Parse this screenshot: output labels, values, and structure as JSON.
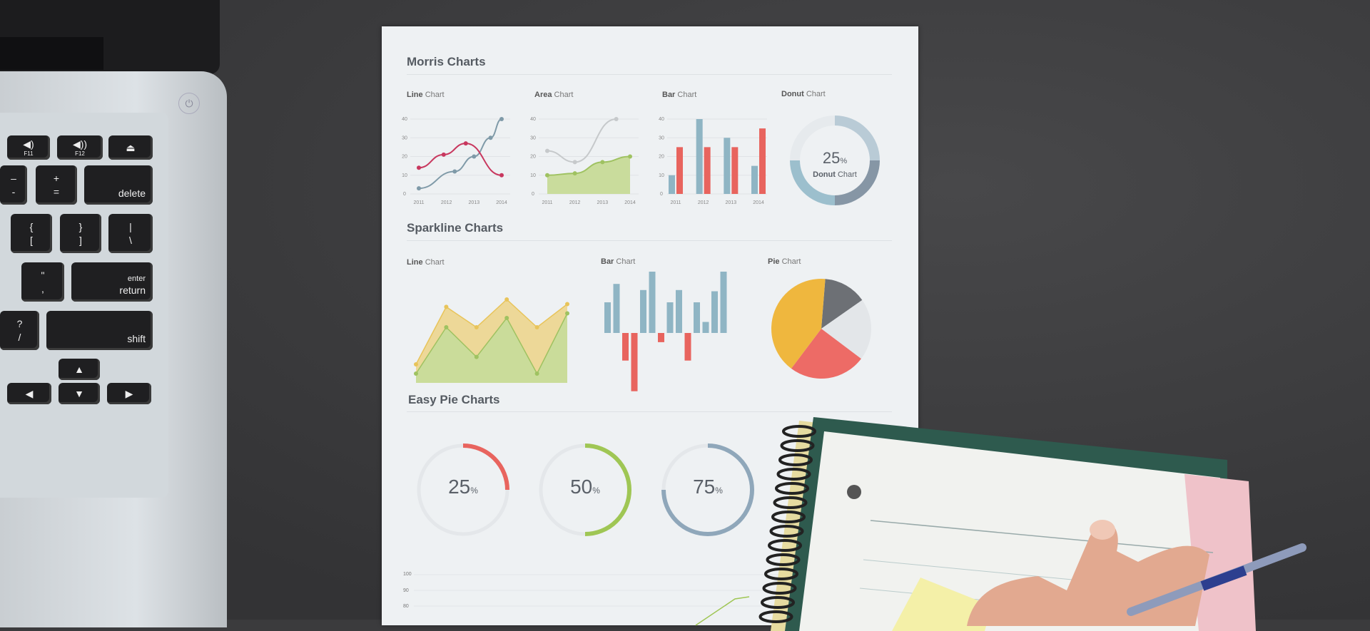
{
  "laptop": {
    "keys": [
      {
        "top": "◀)",
        "bottom": "F11"
      },
      {
        "top": "◀))",
        "bottom": "F12"
      },
      {
        "top": "⏏",
        "bottom": ""
      },
      {
        "top": "–",
        "bottom": "-"
      },
      {
        "top": "+",
        "bottom": "="
      },
      {
        "top": "",
        "bottom": "delete"
      },
      {
        "top": "{",
        "bottom": "["
      },
      {
        "top": "}",
        "bottom": "]"
      },
      {
        "top": "|",
        "bottom": "\\"
      },
      {
        "top": "\"",
        "bottom": ","
      },
      {
        "top": "enter",
        "bottom": "return"
      },
      {
        "top": "?",
        "bottom": "/"
      },
      {
        "top": "",
        "bottom": "shift"
      },
      {
        "top": "▲",
        "bottom": ""
      },
      {
        "top": "◀",
        "bottom": ""
      },
      {
        "top": "▼",
        "bottom": ""
      },
      {
        "top": "▶",
        "bottom": ""
      }
    ],
    "power_icon": "⏻"
  },
  "paper": {
    "morris": {
      "title": "Morris Charts",
      "line": {
        "bold": "Line",
        "label": "Chart"
      },
      "area": {
        "bold": "Area",
        "label": "Chart"
      },
      "bar": {
        "bold": "Bar",
        "label": "Chart"
      },
      "donut": {
        "bold": "Donut",
        "label": "Chart",
        "value": "25",
        "unit": "%"
      }
    },
    "sparkline": {
      "title": "Sparkline Charts",
      "line": {
        "bold": "Line",
        "label": "Chart"
      },
      "bar": {
        "bold": "Bar",
        "label": "Chart"
      },
      "pie": {
        "bold": "Pie",
        "label": "Chart"
      }
    },
    "easypie": {
      "title": "Easy Pie Charts",
      "items": [
        {
          "value": "25",
          "unit": "%"
        },
        {
          "value": "50",
          "unit": "%"
        },
        {
          "value": "75",
          "unit": "%"
        }
      ]
    },
    "bottom_ticks": [
      "100",
      "90",
      "80"
    ]
  },
  "chart_data": [
    {
      "type": "line",
      "title": "Line Chart",
      "x_ticks": [
        "2011",
        "2012",
        "2013",
        "2014"
      ],
      "y_ticks": [
        "0",
        "10",
        "20",
        "30",
        "40"
      ],
      "ylim": [
        0,
        40
      ],
      "series": [
        {
          "color": "#7f9aa8",
          "points": [
            [
              2011,
              3
            ],
            [
              2012.3,
              12
            ],
            [
              2013,
              20
            ],
            [
              2013.6,
              30
            ],
            [
              2014,
              40
            ]
          ]
        },
        {
          "color": "#c8375e",
          "points": [
            [
              2011,
              14
            ],
            [
              2011.9,
              21
            ],
            [
              2012.7,
              27
            ],
            [
              2014,
              10
            ]
          ]
        }
      ]
    },
    {
      "type": "area",
      "title": "Area Chart",
      "x_ticks": [
        "2011",
        "2012",
        "2013",
        "2014"
      ],
      "y_ticks": [
        "0",
        "10",
        "20",
        "30",
        "40"
      ],
      "ylim": [
        0,
        40
      ],
      "series": [
        {
          "color": "#c6c9cb",
          "points": [
            [
              2011,
              23
            ],
            [
              2012,
              17
            ],
            [
              2013.5,
              40
            ]
          ]
        },
        {
          "color": "#9fc261",
          "points": [
            [
              2011,
              10
            ],
            [
              2012,
              11
            ],
            [
              2013,
              17
            ],
            [
              2014,
              20
            ]
          ]
        }
      ]
    },
    {
      "type": "bar",
      "title": "Bar Chart",
      "categories": [
        "2011",
        "2012",
        "2013",
        "2014"
      ],
      "y_ticks": [
        "0",
        "10",
        "20",
        "30",
        "40"
      ],
      "ylim": [
        0,
        40
      ],
      "series": [
        {
          "color": "#8fb5c4",
          "values": [
            10,
            40,
            30,
            15
          ]
        },
        {
          "color": "#e8645e",
          "values": [
            25,
            25,
            25,
            35
          ]
        }
      ]
    },
    {
      "type": "pie",
      "title": "Donut Chart",
      "values": [
        25,
        25,
        25,
        25
      ],
      "colors": [
        "#b9cbd6",
        "#8696a5",
        "#9cbfcd",
        "#e6eaed"
      ]
    },
    {
      "type": "area",
      "title": "Sparkline Line Chart",
      "series": [
        {
          "color": "#e8c45a",
          "values": [
            2,
            8.2,
            6,
            9,
            6,
            8.5
          ]
        },
        {
          "color": "#9fc261",
          "values": [
            1,
            6,
            2.8,
            7,
            1,
            7.5
          ]
        }
      ]
    },
    {
      "type": "bar",
      "title": "Sparkline Bar Chart",
      "values": [
        5,
        8,
        -4.5,
        -9.5,
        7,
        10,
        -1.5,
        5,
        7,
        -4.5,
        5,
        1.8,
        6.8,
        10
      ],
      "pos_color": "#8fb5c4",
      "neg_color": "#e8645e"
    },
    {
      "type": "pie",
      "title": "Sparkline Pie Chart",
      "values": [
        14,
        20,
        25,
        41
      ],
      "colors": [
        "#6d7075",
        "#e3e6e9",
        "#ed6b66",
        "#efb73e"
      ]
    },
    {
      "type": "pie",
      "title": "Easy Pie Charts",
      "values": [
        25,
        50,
        75
      ],
      "colors": [
        "#e8645e",
        "#9fc654",
        "#8fa7ba"
      ]
    }
  ]
}
